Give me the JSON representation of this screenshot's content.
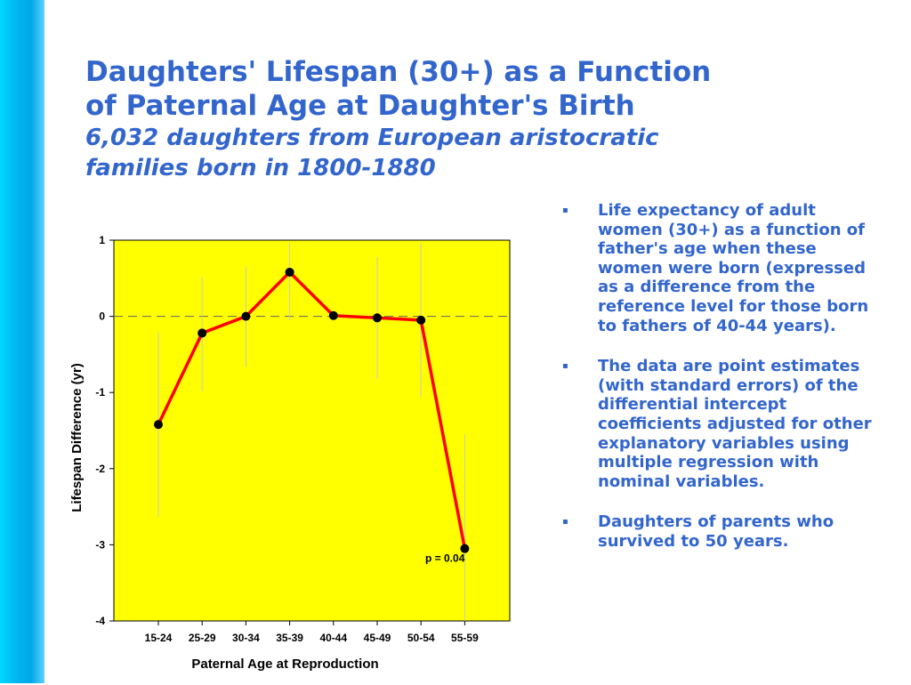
{
  "title": {
    "line1": "Daughters' Lifespan (30+) as a Function",
    "line2": "of  Paternal Age at Daughter's Birth",
    "line3": "6,032 daughters from European aristocratic",
    "line4": "families born in 1800-1880"
  },
  "bullets": [
    {
      "mark": "▪",
      "text": " Life expectancy of adult women (30+)  as a function of father's age when these women were born (expressed as a difference from  the reference level for those born to fathers of 40-44 years)."
    },
    {
      "mark": "▪",
      "text": "      The data are point estimates (with standard errors) of the differential intercept coefficients adjusted for other explanatory variables using multiple regression with nominal variables."
    },
    {
      "mark": "▪",
      "text": "      Daughters of parents who survived to 50 years."
    }
  ],
  "colors": {
    "title": "#3366cc",
    "plot_bg": "#ffff00",
    "line": "#ff0000",
    "marker": "#000000",
    "side_bar": "#00b4f0"
  },
  "chart_data": {
    "type": "line",
    "categories": [
      "15-24",
      "25-29",
      "30-34",
      "35-39",
      "40-44",
      "45-49",
      "50-54",
      "55-59"
    ],
    "series": [
      {
        "values": [
          -1.42,
          -0.22,
          0.0,
          0.58,
          0.01,
          -0.02,
          -0.05,
          -3.05
        ],
        "error_low": [
          -2.63,
          -0.98,
          -0.66,
          -0.05,
          -0.01,
          -0.82,
          -1.06,
          -4.0
        ],
        "error_high": [
          -0.21,
          0.52,
          0.66,
          0.97,
          0.03,
          0.78,
          0.96,
          -1.55
        ]
      }
    ],
    "xlabel": "Paternal Age at Reproduction",
    "ylabel": "Lifespan Difference (yr)",
    "ylim": [
      -4,
      1
    ],
    "yticks": [
      1,
      0,
      -1,
      -2,
      -3,
      -4
    ],
    "reference_line": 0,
    "annotation": "p = 0.04",
    "grid": false
  }
}
